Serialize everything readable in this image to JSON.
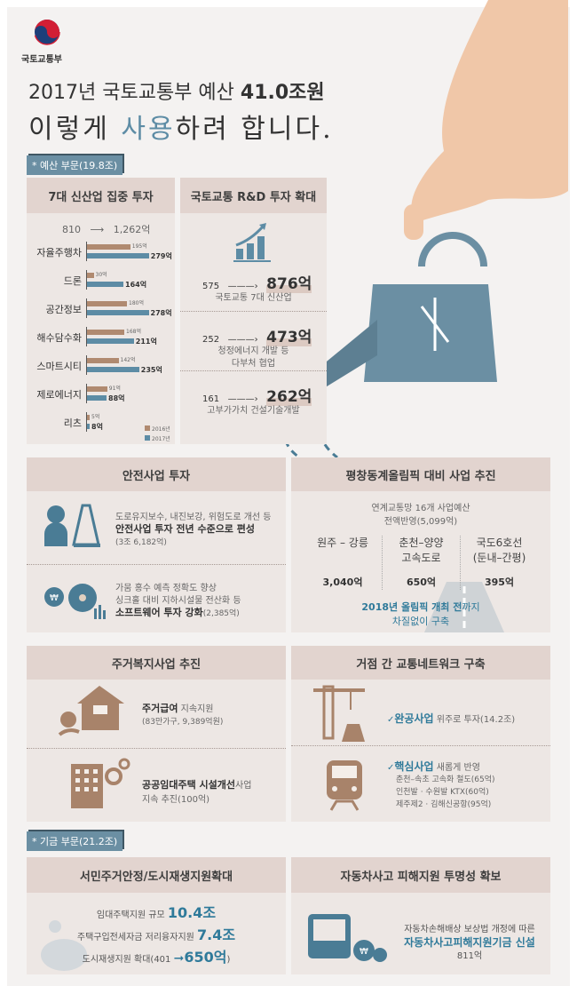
{
  "logo": {
    "org": "국토교통부"
  },
  "title": {
    "line1_prefix": "2017년 국토교통부 예산 ",
    "line1_bold": "41.0조원",
    "line2_a": "이렇게 ",
    "line2_b": "사용",
    "line2_c": "하려 합니다."
  },
  "badges": {
    "budget": "* 예산 부문(19.8조)",
    "fund": "* 기금 부문(21.2조)"
  },
  "new_industry": {
    "header": "7대 신산업 집중 투자",
    "from": "810",
    "arrow": "⟶",
    "to": "1,262억"
  },
  "chart_data": {
    "type": "bar",
    "orientation": "horizontal",
    "categories": [
      "자율주행차",
      "드론",
      "공간정보",
      "해수담수화",
      "스마트시티",
      "제로에너지",
      "리츠"
    ],
    "series": [
      {
        "name": "2016년",
        "color": "#b08a70",
        "values": [
          195,
          30,
          180,
          168,
          142,
          91,
          5
        ],
        "labels": [
          "195억",
          "30억",
          "180억",
          "168억",
          "142억",
          "91억",
          "5억"
        ]
      },
      {
        "name": "2017년",
        "color": "#5d8ca5",
        "values": [
          279,
          164,
          278,
          211,
          235,
          88,
          8
        ],
        "labels": [
          "279억",
          "164억",
          "278억",
          "211억",
          "235억",
          "88억",
          "8억"
        ]
      }
    ],
    "legend": "bottom-right"
  },
  "rnd": {
    "header": "국토교통 R&D 투자 확대",
    "items": [
      {
        "from": "575",
        "to": "876억",
        "desc1": "국토교통 7대 신산업",
        "desc2": ""
      },
      {
        "from": "252",
        "to": "473억",
        "desc1": "청정에너지 개발 등",
        "desc2": "다부처 협업"
      },
      {
        "from": "161",
        "to": "262억",
        "desc1": "고부가가치 건설기술개발",
        "desc2": ""
      }
    ]
  },
  "safety": {
    "header": "안전사업 투자",
    "item1": {
      "line1": "도로유지보수, 내진보강, 위험도로 개선 등",
      "bold": "안전사업 투자 전년 수준으로 편성",
      "note": "(3조 6,182억)"
    },
    "item2": {
      "line1": "가뭄 홍수 예측 정확도 향상",
      "line2": "싱크홀 대비 지하시설물 전산화 등",
      "bold": "소프트웨어 투자 강화",
      "note": "(2,385억)"
    }
  },
  "olympic": {
    "header": "평창동계올림픽 대비 사업 추진",
    "intro1": "연계교통망 16개 사업예산",
    "intro2": "전액반영(5,099억)",
    "cols": [
      {
        "name1": "원주 – 강릉",
        "name2": "",
        "amount": "3,040억"
      },
      {
        "name1": "춘천–양양",
        "name2": "고속도로",
        "amount": "650억"
      },
      {
        "name1": "국도6호선",
        "name2": "(둔내–간평)",
        "amount": "395억"
      }
    ],
    "footer_bold": "2018년 올림픽 개최 전",
    "footer_rest": "까지",
    "footer2": "차질없이 구축"
  },
  "housing": {
    "header": "주거복지사업 추진",
    "item1": {
      "bold": "주거급여",
      "rest": " 지속지원",
      "note": "(83만가구, 9,389억원)"
    },
    "item2": {
      "bold": "공공임대주택 시설개선",
      "rest": "사업",
      "note": "지속 추진(100억)"
    }
  },
  "network": {
    "header": "거점 간 교통네트워크 구축",
    "check": "✓",
    "item1": {
      "bold": "완공사업",
      "rest": " 위주로 투자(14.2조)"
    },
    "item2": {
      "bold": "핵심사업",
      "rest": " 새롭게 반영",
      "lines": [
        "춘천–속초 고속화 철도(65억)",
        "인천발 · 수원발 KTX(60억)",
        "제주제2 · 김해신공항(95억)"
      ]
    }
  },
  "urban": {
    "header": "서민주거안정/도시재생지원확대",
    "l1": "임대주택지원 규모 ",
    "v1": "10.4조",
    "l2": "주택구입전세자금 저리융자지원 ",
    "v2": "7.4조",
    "l3": "도시재생지원 확대(401 ",
    "arrow": "➞",
    "v3": "650억",
    "close": ")"
  },
  "car": {
    "header": "자동차사고 피해지원 투명성 확보",
    "line1": "자동차손해배상 보상법 개정에 따른",
    "bold": "자동차사고피해지원기금 신설",
    "amount": "811억"
  },
  "colors": {
    "accent_blue": "#2f7a9a",
    "brown": "#a8836a",
    "panel": "#ede7e4",
    "header": "#e2d4cf"
  }
}
